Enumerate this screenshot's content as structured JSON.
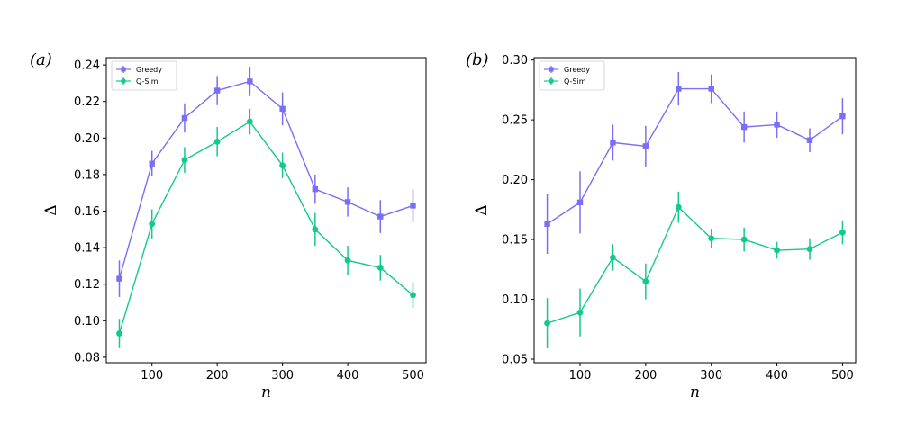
{
  "chart_data": [
    {
      "type": "line",
      "panel_label": "(a)",
      "xlabel": "n",
      "ylabel": "Δ",
      "x": [
        50,
        100,
        150,
        200,
        250,
        300,
        350,
        400,
        450,
        500
      ],
      "xlim": [
        30,
        520
      ],
      "ylim": [
        0.077,
        0.244
      ],
      "xticks": [
        100,
        200,
        300,
        400,
        500
      ],
      "xtick_labels": [
        "100",
        "200",
        "300",
        "400",
        "500"
      ],
      "yticks": [
        0.08,
        0.1,
        0.12,
        0.14,
        0.16,
        0.18,
        0.2,
        0.22,
        0.24
      ],
      "ytick_labels": [
        "0.08",
        "0.10",
        "0.12",
        "0.14",
        "0.16",
        "0.18",
        "0.20",
        "0.22",
        "0.24"
      ],
      "legend_position": "top-left",
      "series": [
        {
          "name": "Greedy",
          "color": "#7b6ef6",
          "marker": "square",
          "values": [
            0.123,
            0.186,
            0.211,
            0.226,
            0.231,
            0.216,
            0.172,
            0.165,
            0.157,
            0.163
          ],
          "errors": [
            0.01,
            0.007,
            0.008,
            0.008,
            0.008,
            0.009,
            0.008,
            0.008,
            0.009,
            0.009
          ]
        },
        {
          "name": "Q-Sim",
          "color": "#13c98d",
          "marker": "circle",
          "values": [
            0.093,
            0.153,
            0.188,
            0.198,
            0.209,
            0.185,
            0.15,
            0.133,
            0.129,
            0.114
          ],
          "errors": [
            0.008,
            0.008,
            0.007,
            0.008,
            0.007,
            0.007,
            0.009,
            0.008,
            0.007,
            0.007
          ]
        }
      ]
    },
    {
      "type": "line",
      "panel_label": "(b)",
      "xlabel": "n",
      "ylabel": "Δ",
      "x": [
        50,
        100,
        150,
        200,
        250,
        300,
        350,
        400,
        450,
        500
      ],
      "xlim": [
        30,
        520
      ],
      "ylim": [
        0.047,
        0.302
      ],
      "xticks": [
        100,
        200,
        300,
        400,
        500
      ],
      "xtick_labels": [
        "100",
        "200",
        "300",
        "400",
        "500"
      ],
      "yticks": [
        0.05,
        0.1,
        0.15,
        0.2,
        0.25,
        0.3
      ],
      "ytick_labels": [
        "0.05",
        "0.10",
        "0.15",
        "0.20",
        "0.25",
        "0.30"
      ],
      "legend_position": "top-left",
      "series": [
        {
          "name": "Greedy",
          "color": "#7b6ef6",
          "marker": "square",
          "values": [
            0.163,
            0.181,
            0.231,
            0.228,
            0.276,
            0.276,
            0.244,
            0.246,
            0.233,
            0.253
          ],
          "errors": [
            0.025,
            0.026,
            0.015,
            0.017,
            0.014,
            0.012,
            0.013,
            0.011,
            0.01,
            0.015
          ]
        },
        {
          "name": "Q-Sim",
          "color": "#13c98d",
          "marker": "circle",
          "values": [
            0.08,
            0.089,
            0.135,
            0.115,
            0.177,
            0.151,
            0.15,
            0.141,
            0.142,
            0.156
          ],
          "errors": [
            0.021,
            0.02,
            0.011,
            0.015,
            0.013,
            0.008,
            0.01,
            0.007,
            0.009,
            0.01
          ]
        }
      ]
    }
  ]
}
